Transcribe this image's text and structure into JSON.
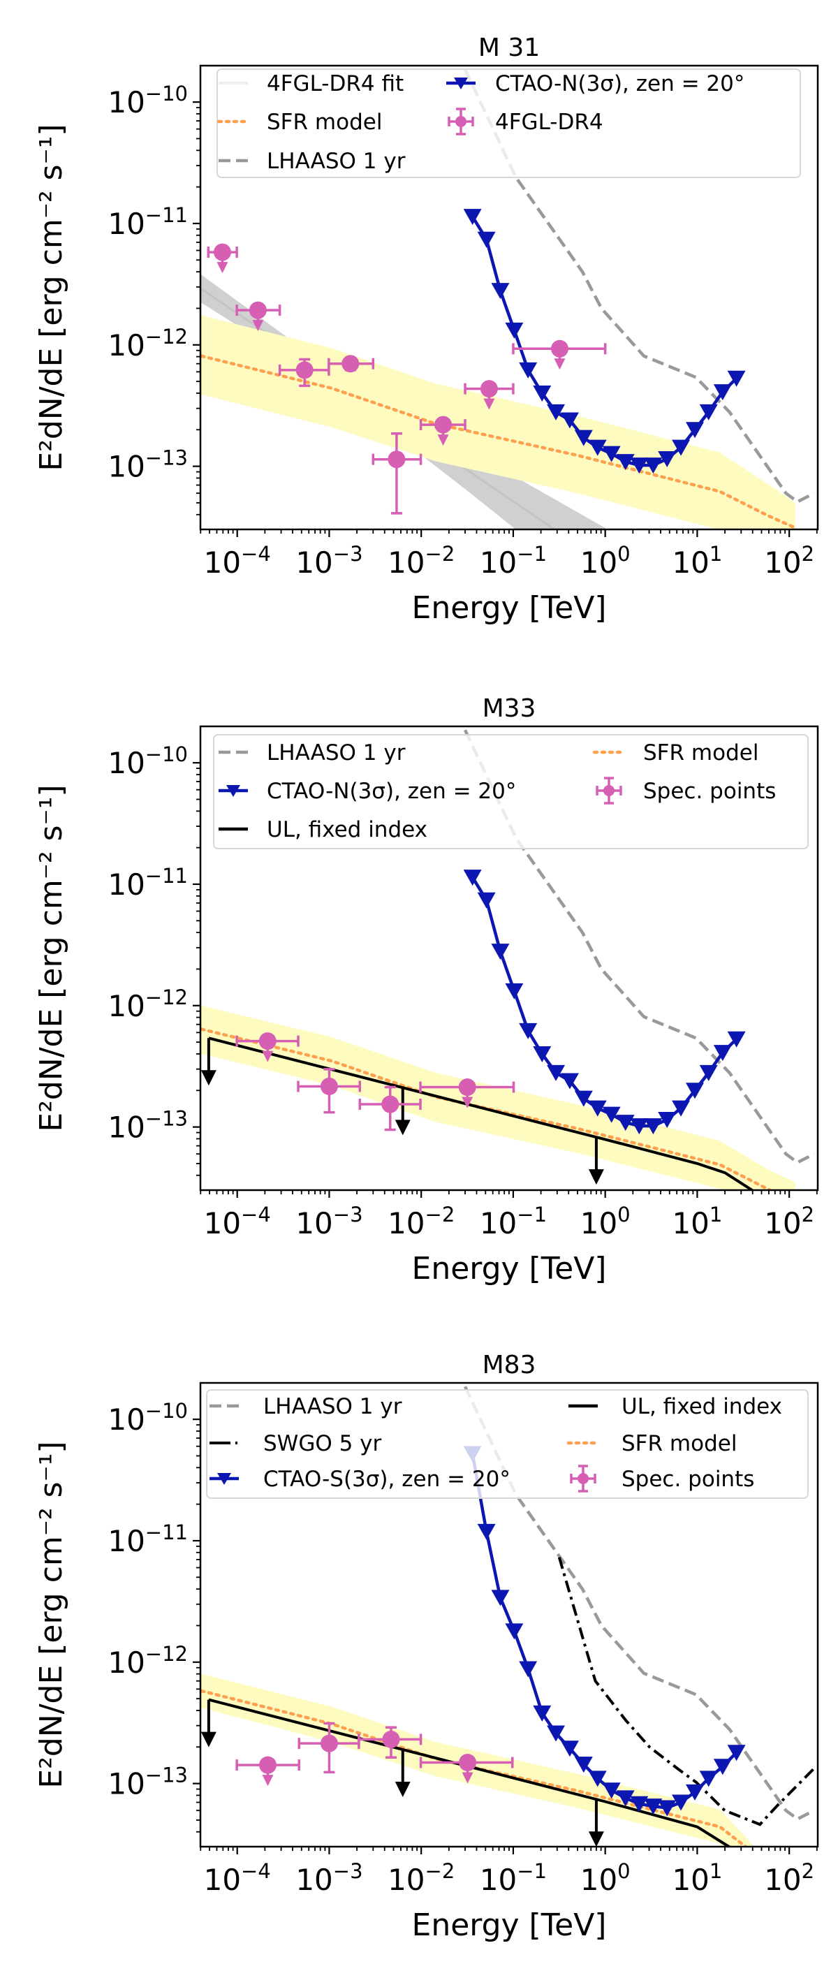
{
  "chart_data": [
    {
      "type": "line",
      "title": "M 31",
      "xlabel": "Energy [TeV]",
      "ylabel": "E²dN/dE [erg cm⁻² s⁻¹]",
      "xscale": "log",
      "yscale": "log",
      "xlim": [
        4e-05,
        200.0
      ],
      "ylim": [
        3e-14,
        2e-10
      ],
      "grid": false,
      "legend_placement": "top",
      "x_ticks": [
        {
          "base": "10",
          "exp": "−4",
          "value": 0.0001
        },
        {
          "base": "10",
          "exp": "−3",
          "value": 0.001
        },
        {
          "base": "10",
          "exp": "−2",
          "value": 0.01
        },
        {
          "base": "10",
          "exp": "−1",
          "value": 0.1
        },
        {
          "base": "10",
          "exp": "0",
          "value": 1
        },
        {
          "base": "10",
          "exp": "1",
          "value": 10
        },
        {
          "base": "10",
          "exp": "2",
          "value": 100
        }
      ],
      "y_ticks": [
        {
          "base": "10",
          "exp": "−10",
          "value": 1e-10
        },
        {
          "base": "10",
          "exp": "−11",
          "value": 1e-11
        },
        {
          "base": "10",
          "exp": "−12",
          "value": 1e-12
        },
        {
          "base": "10",
          "exp": "−13",
          "value": 1e-13
        }
      ],
      "legend_order": [
        0,
        1,
        2,
        3,
        4
      ],
      "series": [
        {
          "name": "4FGL-DR4 fit",
          "kind": "band_line",
          "color": "#c4c4c4",
          "band_color": "#c8c8c8",
          "x": [
            4e-05,
            0.0005,
            0.003,
            0.03,
            1.0
          ],
          "y": [
            2.92e-12,
            7.98e-13,
            3.16e-13,
            9.6e-14,
            1.56e-14
          ],
          "upper": [
            3.81e-12,
            9.5e-13,
            3.98e-13,
            1.41e-13,
            3.1e-14
          ],
          "lower": [
            2.24e-12,
            6.7e-13,
            2.5e-13,
            6.5e-14,
            7.8e-15
          ]
        },
        {
          "name": "SFR model",
          "kind": "band_dotted",
          "color": "#ffa04f",
          "band_color": "#fdfbc0",
          "x": [
            4.07e-05,
            0.00106,
            0.0143,
            0.5,
            17.6,
            57.5,
            117
          ],
          "y": [
            8.1e-13,
            4.4e-13,
            2.24e-13,
            1.23e-13,
            6.2e-14,
            3.95e-14,
            3.1e-14
          ],
          "upper": [
            1.75e-12,
            9.4e-13,
            4.8e-13,
            2.6e-13,
            1.3e-13,
            7.2e-14,
            5e-14
          ],
          "lower": [
            3.9e-13,
            2.1e-13,
            1.1e-13,
            6e-14,
            3e-14,
            1.9e-14,
            1.5e-14
          ]
        },
        {
          "name": "LHAASO 1 yr",
          "kind": "dashed",
          "color": "#999999",
          "x": [
            0.03,
            0.107,
            0.565,
            0.908,
            2.63,
            9.7,
            22.4,
            92,
            123,
            186
          ],
          "y": [
            1.86e-10,
            2.4e-11,
            4e-12,
            2e-12,
            8.1e-13,
            5.4e-13,
            2.8e-13,
            6e-14,
            5.1e-14,
            6e-14
          ]
        },
        {
          "name": "CTAO-N(3σ), zen = 20°",
          "kind": "line_triangles",
          "color": "#0c16b0",
          "x": [
            0.0361,
            0.0512,
            0.0724,
            0.1026,
            0.145,
            0.206,
            0.291,
            0.412,
            0.583,
            0.826,
            1.17,
            1.66,
            2.34,
            3.32,
            4.7,
            6.65,
            9.42,
            13.3,
            18.9,
            26.7
          ],
          "y": [
            1.14e-11,
            7.4e-12,
            2.8e-12,
            1.32e-12,
            6.2e-13,
            4e-13,
            2.8e-13,
            2.4e-13,
            1.72e-13,
            1.43e-13,
            1.27e-13,
            1.09e-13,
            1.02e-13,
            1.02e-13,
            1.15e-13,
            1.43e-13,
            2e-13,
            2.8e-13,
            4.1e-13,
            5.3e-13
          ]
        },
        {
          "name": "4FGL-DR4",
          "kind": "errorbar",
          "color": "#d65fb4",
          "points": [
            {
              "x": 6.9e-05,
              "x_lo": 4.85e-05,
              "x_hi": 9.9e-05,
              "y": 5.8e-12,
              "upper_limit": true
            },
            {
              "x": 0.000168,
              "x_lo": 9.9e-05,
              "x_hi": 0.00029,
              "y": 1.93e-12,
              "upper_limit": true
            },
            {
              "x": 0.00054,
              "x_lo": 0.00029,
              "x_hi": 0.00099,
              "y": 6.2e-13,
              "y_lo": 4.6e-13,
              "y_hi": 7.6e-13,
              "upper_limit": false
            },
            {
              "x": 0.0017,
              "x_lo": 0.00099,
              "x_hi": 0.003,
              "y": 7e-13,
              "y_lo": 6.2e-13,
              "y_hi": 7.6e-13,
              "upper_limit": false
            },
            {
              "x": 0.0054,
              "x_lo": 0.003,
              "x_hi": 0.0099,
              "y": 1.14e-13,
              "y_lo": 4.1e-14,
              "y_hi": 1.86e-13,
              "upper_limit": false
            },
            {
              "x": 0.0173,
              "x_lo": 0.0099,
              "x_hi": 0.03,
              "y": 2.2e-13,
              "upper_limit": true
            },
            {
              "x": 0.0547,
              "x_lo": 0.03,
              "x_hi": 0.1,
              "y": 4.35e-13,
              "upper_limit": true
            },
            {
              "x": 0.32,
              "x_lo": 0.1,
              "x_hi": 1.0,
              "y": 9.3e-13,
              "upper_limit": true
            }
          ]
        }
      ]
    },
    {
      "type": "line",
      "title": "M33",
      "xlabel": "Energy [TeV]",
      "ylabel": "E²dN/dE [erg cm⁻² s⁻¹]",
      "xscale": "log",
      "yscale": "log",
      "xlim": [
        4e-05,
        200.0
      ],
      "ylim": [
        3e-14,
        2e-10
      ],
      "grid": false,
      "legend_placement": "top",
      "x_ticks": [
        {
          "base": "10",
          "exp": "−4",
          "value": 0.0001
        },
        {
          "base": "10",
          "exp": "−3",
          "value": 0.001
        },
        {
          "base": "10",
          "exp": "−2",
          "value": 0.01
        },
        {
          "base": "10",
          "exp": "−1",
          "value": 0.1
        },
        {
          "base": "10",
          "exp": "0",
          "value": 1
        },
        {
          "base": "10",
          "exp": "1",
          "value": 10
        },
        {
          "base": "10",
          "exp": "2",
          "value": 100
        }
      ],
      "y_ticks": [
        {
          "base": "10",
          "exp": "−10",
          "value": 1e-10
        },
        {
          "base": "10",
          "exp": "−11",
          "value": 1e-11
        },
        {
          "base": "10",
          "exp": "−12",
          "value": 1e-12
        },
        {
          "base": "10",
          "exp": "−13",
          "value": 1e-13
        }
      ],
      "legend_order": [
        1,
        2,
        3,
        0,
        4
      ],
      "series": [
        {
          "name": "SFR model",
          "kind": "band_dotted",
          "color": "#ffa04f",
          "band_color": "#fdfbc0",
          "x": [
            4.07e-05,
            0.00106,
            0.0143,
            0.5,
            17.6,
            57.5,
            117
          ],
          "y": [
            6.4e-13,
            3.5e-13,
            1.77e-13,
            9.7e-14,
            4.9e-14,
            3.1e-14,
            2.4e-14
          ],
          "upper": [
            1e-12,
            5.5e-13,
            2.8e-13,
            1.53e-13,
            7.7e-14,
            4.5e-14,
            3.5e-14
          ],
          "lower": [
            4e-13,
            2.2e-13,
            1.1e-13,
            6.1e-14,
            3.1e-14,
            1.6e-14,
            1.2e-14
          ]
        },
        {
          "name": "LHAASO 1 yr",
          "kind": "dashed",
          "color": "#999999",
          "x": [
            0.03,
            0.107,
            0.565,
            0.908,
            2.63,
            9.7,
            22.4,
            92,
            123,
            186
          ],
          "y": [
            1.86e-10,
            2.4e-11,
            4e-12,
            2e-12,
            8.1e-13,
            5.4e-13,
            2.8e-13,
            6e-14,
            5.1e-14,
            6e-14
          ]
        },
        {
          "name": "CTAO-N(3σ), zen = 20°",
          "kind": "line_triangles",
          "color": "#0c16b0",
          "x": [
            0.0361,
            0.0512,
            0.0724,
            0.1026,
            0.145,
            0.206,
            0.291,
            0.412,
            0.583,
            0.826,
            1.17,
            1.66,
            2.34,
            3.32,
            4.7,
            6.65,
            9.42,
            13.3,
            18.9,
            26.7
          ],
          "y": [
            1.14e-11,
            7.4e-12,
            2.8e-12,
            1.32e-12,
            6.2e-13,
            4e-13,
            2.8e-13,
            2.4e-13,
            1.72e-13,
            1.43e-13,
            1.27e-13,
            1.09e-13,
            1.02e-13,
            1.02e-13,
            1.15e-13,
            1.43e-13,
            2e-13,
            2.8e-13,
            4.1e-13,
            5.3e-13
          ]
        },
        {
          "name": "UL, fixed index",
          "kind": "solid_ul",
          "color": "#000000",
          "x": [
            4.9e-05,
            1.0,
            10,
            20,
            40
          ],
          "y": [
            5.4e-13,
            7.9e-14,
            5e-14,
            4.2e-14,
            3e-14
          ],
          "ul_arrows_at": [
            4.9e-05,
            0.0063,
            0.8
          ]
        },
        {
          "name": "Spec. points",
          "kind": "errorbar",
          "color": "#d65fb4",
          "points": [
            {
              "x": 0.000214,
              "x_lo": 9.9e-05,
              "x_hi": 0.00046,
              "y": 5.1e-13,
              "upper_limit": true
            },
            {
              "x": 0.001,
              "x_lo": 0.00046,
              "x_hi": 0.00215,
              "y": 2.16e-13,
              "y_lo": 1.32e-13,
              "y_hi": 2.99e-13,
              "upper_limit": false
            },
            {
              "x": 0.0046,
              "x_lo": 0.00215,
              "x_hi": 0.0098,
              "y": 1.54e-13,
              "y_lo": 9.5e-14,
              "y_hi": 2.13e-13,
              "upper_limit": false
            },
            {
              "x": 0.0317,
              "x_lo": 0.0098,
              "x_hi": 0.101,
              "y": 2.13e-13,
              "upper_limit": true
            }
          ]
        }
      ]
    },
    {
      "type": "line",
      "title": "M83",
      "xlabel": "Energy [TeV]",
      "ylabel": "E²dN/dE [erg cm⁻² s⁻¹]",
      "xscale": "log",
      "yscale": "log",
      "xlim": [
        4e-05,
        200.0
      ],
      "ylim": [
        3e-14,
        2e-10
      ],
      "grid": false,
      "legend_placement": "top",
      "x_ticks": [
        {
          "base": "10",
          "exp": "−4",
          "value": 0.0001
        },
        {
          "base": "10",
          "exp": "−3",
          "value": 0.001
        },
        {
          "base": "10",
          "exp": "−2",
          "value": 0.01
        },
        {
          "base": "10",
          "exp": "−1",
          "value": 0.1
        },
        {
          "base": "10",
          "exp": "0",
          "value": 1
        },
        {
          "base": "10",
          "exp": "1",
          "value": 10
        },
        {
          "base": "10",
          "exp": "2",
          "value": 100
        }
      ],
      "y_ticks": [
        {
          "base": "10",
          "exp": "−10",
          "value": 1e-10
        },
        {
          "base": "10",
          "exp": "−11",
          "value": 1e-11
        },
        {
          "base": "10",
          "exp": "−12",
          "value": 1e-12
        },
        {
          "base": "10",
          "exp": "−13",
          "value": 1e-13
        }
      ],
      "legend_order": [
        1,
        2,
        3,
        4,
        0,
        5
      ],
      "series": [
        {
          "name": "SFR model",
          "kind": "band_dotted",
          "color": "#ffa04f",
          "band_color": "#fdfbc0",
          "x": [
            4.07e-05,
            0.00106,
            0.0143,
            0.5,
            17.6,
            34,
            45
          ],
          "y": [
            5.8e-13,
            3.1e-13,
            1.6e-13,
            8.7e-14,
            4.4e-14,
            3e-14,
            2.4e-14
          ],
          "upper": [
            8e-13,
            4.3e-13,
            2.2e-13,
            1.2e-13,
            6.1e-14,
            3.6e-14,
            2.8e-14
          ],
          "lower": [
            4.2e-13,
            2.2e-13,
            1.15e-13,
            6.3e-14,
            3.2e-14,
            1.8e-14,
            1.4e-14
          ]
        },
        {
          "name": "LHAASO 1 yr",
          "kind": "dashed",
          "color": "#999999",
          "x": [
            0.03,
            0.107,
            0.565,
            0.908,
            2.63,
            9.7,
            22.4,
            92,
            123,
            186
          ],
          "y": [
            1.86e-10,
            2.4e-11,
            4e-12,
            2e-12,
            8.1e-13,
            5.4e-13,
            2.8e-13,
            6e-14,
            5.1e-14,
            6e-14
          ]
        },
        {
          "name": "SWGO 5 yr",
          "kind": "dashdot",
          "color": "#000000",
          "x": [
            0.316,
            0.78,
            1.68,
            3.03,
            6.1,
            9.8,
            19.9,
            48,
            73,
            186
          ],
          "y": [
            7.3e-12,
            7e-13,
            3.3e-13,
            2e-13,
            1.33e-13,
            1.02e-13,
            6e-14,
            4.6e-14,
            6.5e-14,
            1.33e-13
          ]
        },
        {
          "name": "CTAO-S(3σ), zen = 20°",
          "kind": "line_triangles",
          "color": "#0c16b0",
          "x": [
            0.0361,
            0.0512,
            0.0724,
            0.1026,
            0.145,
            0.206,
            0.291,
            0.412,
            0.583,
            0.826,
            1.17,
            1.66,
            2.34,
            3.32,
            4.7,
            6.65,
            9.42,
            13.3,
            18.9,
            26.7
          ],
          "y": [
            5.2e-11,
            1.19e-11,
            3.4e-12,
            1.8e-12,
            8.8e-13,
            3.8e-13,
            2.6e-13,
            1.95e-13,
            1.44e-13,
            1.1e-13,
            8.8e-14,
            7.6e-14,
            6.8e-14,
            6.5e-14,
            6.3e-14,
            7e-14,
            8.5e-14,
            1.1e-13,
            1.38e-13,
            1.8e-13
          ]
        },
        {
          "name": "UL, fixed index",
          "kind": "solid_ul",
          "color": "#000000",
          "x": [
            4.9e-05,
            1.0,
            10,
            22.4
          ],
          "y": [
            4.9e-13,
            7.1e-14,
            4.4e-14,
            3e-14
          ],
          "ul_arrows_at": [
            4.9e-05,
            0.0063,
            0.8
          ]
        },
        {
          "name": "Spec. points",
          "kind": "errorbar",
          "color": "#d65fb4",
          "points": [
            {
              "x": 0.000215,
              "x_lo": 9.9e-05,
              "x_hi": 0.00047,
              "y": 1.42e-13,
              "upper_limit": true
            },
            {
              "x": 0.001,
              "x_lo": 0.00047,
              "x_hi": 0.0021,
              "y": 2.14e-13,
              "y_lo": 1.24e-13,
              "y_hi": 3.13e-13,
              "upper_limit": false
            },
            {
              "x": 0.0047,
              "x_lo": 0.0021,
              "x_hi": 0.0099,
              "y": 2.31e-13,
              "y_lo": 1.64e-13,
              "y_hi": 2.9e-13,
              "upper_limit": false
            },
            {
              "x": 0.0319,
              "x_lo": 0.0099,
              "x_hi": 0.098,
              "y": 1.49e-13,
              "upper_limit": true
            }
          ]
        }
      ]
    }
  ]
}
